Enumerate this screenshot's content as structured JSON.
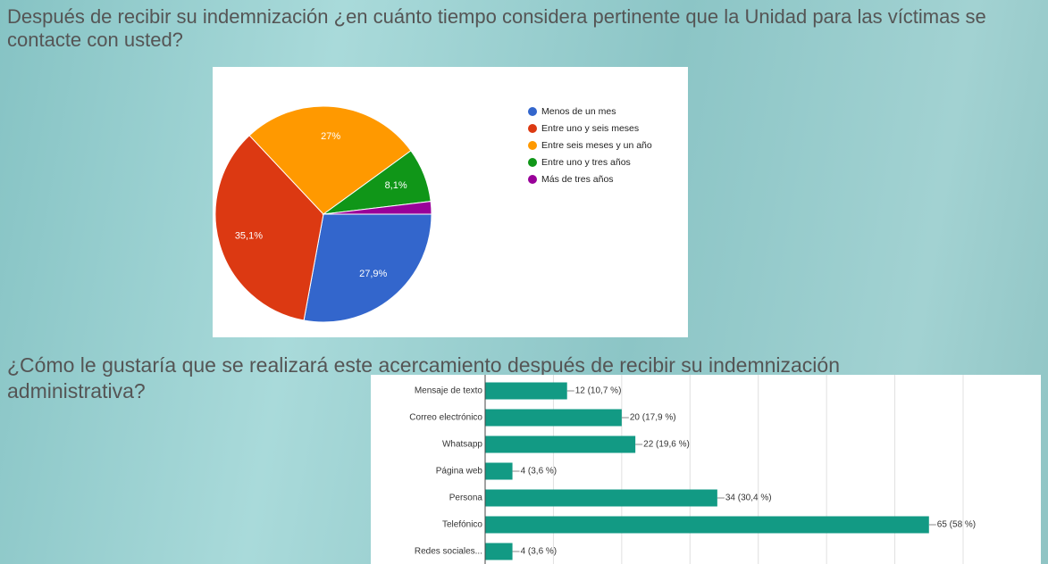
{
  "chart_data": [
    {
      "type": "pie",
      "title": "Después de recibir su indemnización ¿en cuánto tiempo considera pertinente que la Unidad para las víctimas se contacte con usted?",
      "categories": [
        "Menos de un mes",
        "Entre uno y seis meses",
        "Entre seis meses y un año",
        "Entre uno y tres años",
        "Más de tres años"
      ],
      "values": [
        27.9,
        35.1,
        27,
        8.1,
        1.9
      ],
      "value_labels": [
        "27,9%",
        "35,1%",
        "27%",
        "8,1%",
        null
      ],
      "colors": [
        "#3366cc",
        "#dc3912",
        "#ff9900",
        "#109618",
        "#990099"
      ],
      "legend": "right"
    },
    {
      "type": "bar",
      "orientation": "horizontal",
      "title": "¿Cómo le gustaría que se realizará este acercamiento después de recibir su indemnización administrativa?",
      "categories": [
        "Mensaje de texto",
        "Correo electrónico",
        "Whatsapp",
        "Página web",
        "Persona",
        "Telefónico",
        "Redes sociales..."
      ],
      "values": [
        12,
        20,
        22,
        4,
        34,
        65,
        4
      ],
      "value_labels": [
        "12 (10,7 %)",
        "20 (17,9 %)",
        "22 (19,6 %)",
        "4 (3,6 %)",
        "34 (30,4 %)",
        "65 (58 %)",
        "4 (3,6 %)"
      ],
      "color": "#129a84",
      "xlim": [
        0,
        70
      ],
      "xticks": [
        0,
        10,
        20,
        30,
        40,
        50,
        60,
        70
      ],
      "grid": true
    }
  ]
}
